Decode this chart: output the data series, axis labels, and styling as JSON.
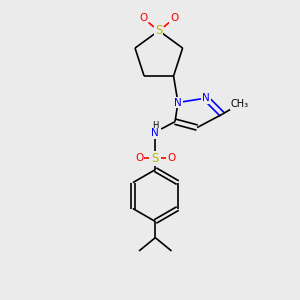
{
  "bg_color": "#ebebeb",
  "bond_color": "#000000",
  "S_color": "#b8b800",
  "N_color": "#0000ff",
  "O_color": "#ff0000",
  "H_color": "#000000",
  "lw": 1.2,
  "fs": 7.5,
  "xlim": [
    0,
    10
  ],
  "ylim": [
    0,
    10
  ]
}
